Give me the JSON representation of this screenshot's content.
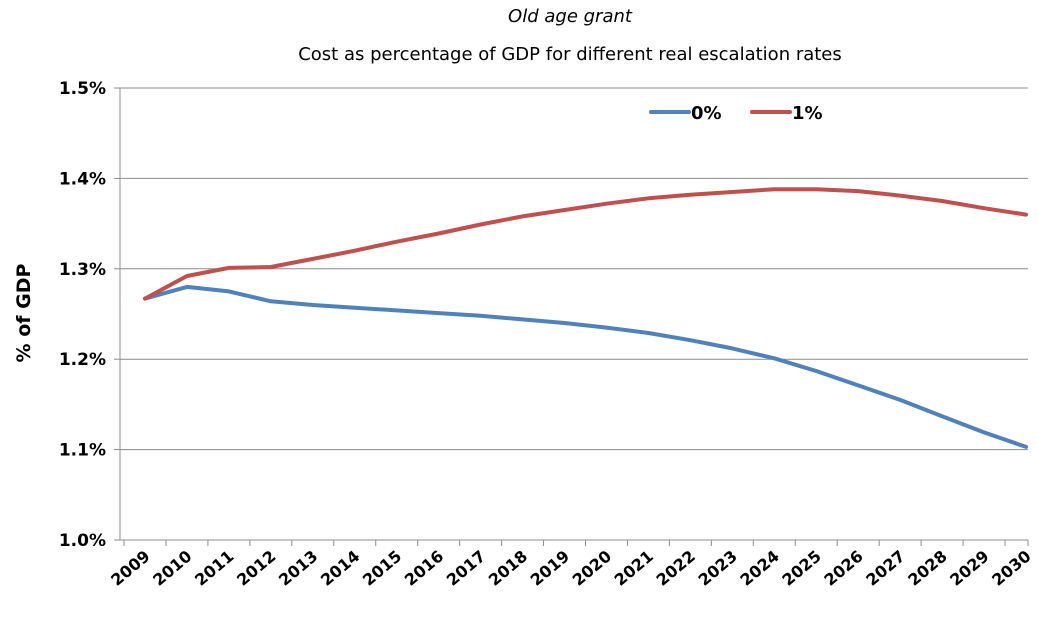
{
  "chart_data": {
    "type": "line",
    "title": "Old age grant",
    "subtitle": "Cost as percentage of GDP for different real escalation rates",
    "xlabel": "",
    "ylabel": "% of GDP",
    "categories": [
      "2009",
      "2010",
      "2011",
      "2012",
      "2013",
      "2014",
      "2015",
      "2016",
      "2017",
      "2018",
      "2019",
      "2020",
      "2021",
      "2022",
      "2023",
      "2024",
      "2025",
      "2026",
      "2027",
      "2028",
      "2029",
      "2030"
    ],
    "y_ticks": [
      "1.0%",
      "1.1%",
      "1.2%",
      "1.3%",
      "1.4%",
      "1.5%"
    ],
    "ylim": [
      1.0,
      1.5
    ],
    "y_unit": "%",
    "grid": true,
    "legend_position": "top-right",
    "series": [
      {
        "name": "0%",
        "color": "#4F81BD",
        "values": [
          1.267,
          1.28,
          1.275,
          1.264,
          1.26,
          1.257,
          1.254,
          1.251,
          1.248,
          1.244,
          1.24,
          1.235,
          1.229,
          1.221,
          1.212,
          1.201,
          1.187,
          1.171,
          1.155,
          1.137,
          1.119,
          1.103
        ]
      },
      {
        "name": "1%",
        "color": "#C0504D",
        "values": [
          1.267,
          1.292,
          1.301,
          1.302,
          1.311,
          1.32,
          1.33,
          1.339,
          1.349,
          1.358,
          1.365,
          1.372,
          1.378,
          1.382,
          1.385,
          1.388,
          1.388,
          1.386,
          1.381,
          1.375,
          1.367,
          1.36
        ]
      }
    ]
  }
}
